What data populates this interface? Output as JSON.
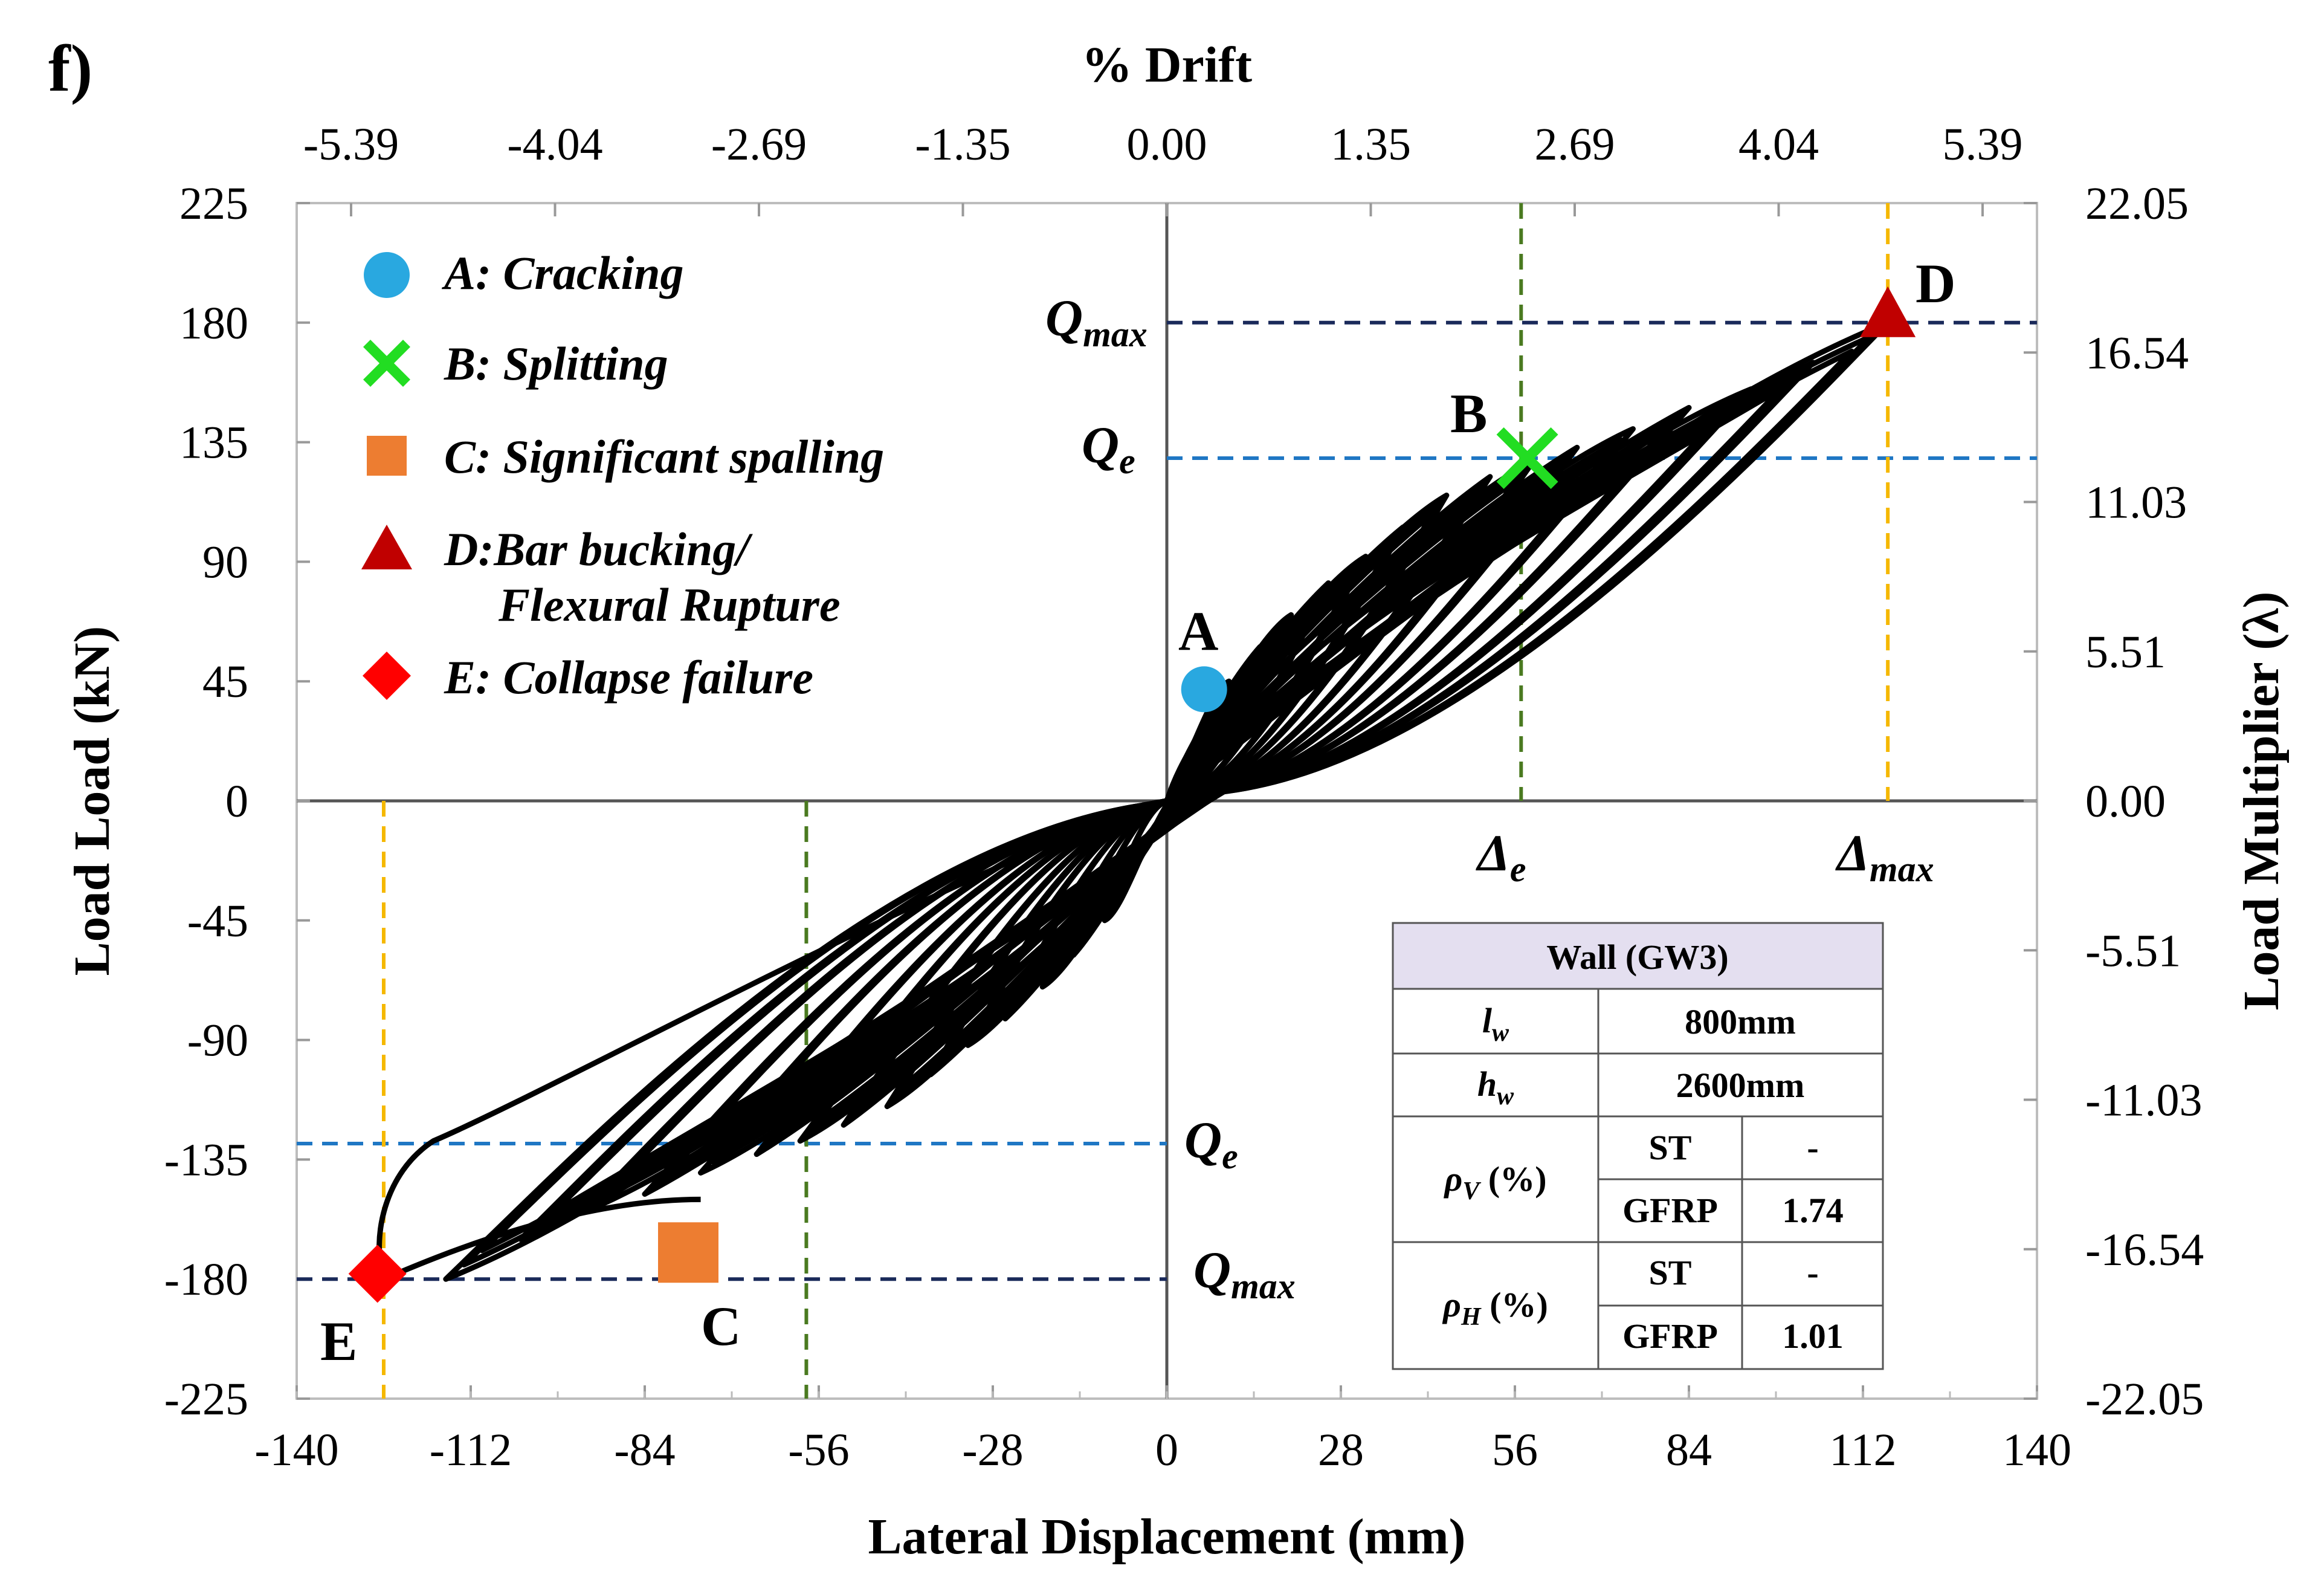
{
  "panel_label": "f)",
  "colors": {
    "hysteresis": "#000000",
    "qe_line": "#1f77c4",
    "qmax_line": "#1a2a5a",
    "delta_e_line": "#4a7a20",
    "delta_max_line": "#f5b800",
    "cracking": "#29a8e0",
    "splitting": "#22dd22",
    "spalling": "#ed7d31",
    "bucking": "#c00000",
    "collapse": "#ff0000",
    "table_header": "#e4dff0"
  },
  "chart_data": {
    "type": "line",
    "title": "",
    "xlabel": "Lateral Displacement (mm)",
    "ylabel": "Load Load (kN)",
    "x2label": "% Drift",
    "y2label": "Load Multiplier  (λ)",
    "xlim": [
      -140,
      140
    ],
    "ylim": [
      -225,
      225
    ],
    "x_ticks": [
      "-140",
      "-112",
      "-84",
      "-56",
      "-28",
      "0",
      "28",
      "56",
      "84",
      "112",
      "140"
    ],
    "y_ticks": [
      "225",
      "180",
      "135",
      "90",
      "45",
      "0",
      "-45",
      "-90",
      "-135",
      "-180",
      "-225"
    ],
    "x2_ticks": [
      "-5.39",
      "-4.04",
      "-2.69",
      "-1.35",
      "0.00",
      "1.35",
      "2.69",
      "4.04",
      "5.39"
    ],
    "y2_ticks": [
      "22.05",
      "16.54",
      "11.03",
      "5.51",
      "0.00",
      "-5.51",
      "-11.03",
      "-16.54",
      "-22.05"
    ],
    "hysteresis_amplitudes": [
      {
        "disp": 10,
        "load": 45
      },
      {
        "disp": 15,
        "load": 58
      },
      {
        "disp": 20,
        "load": 70
      },
      {
        "disp": 26,
        "load": 82
      },
      {
        "disp": 32,
        "load": 92
      },
      {
        "disp": 38,
        "load": 103
      },
      {
        "disp": 45,
        "load": 115
      },
      {
        "disp": 52,
        "load": 122
      },
      {
        "disp": 59,
        "load": 128
      },
      {
        "disp": 66,
        "load": 133
      },
      {
        "disp": 75,
        "load": 140
      },
      {
        "disp": 84,
        "load": 148
      },
      {
        "disp": 94,
        "load": 155
      },
      {
        "disp": 104,
        "load": 165
      },
      {
        "disp": 116,
        "load": 180
      }
    ],
    "collapse_branch": {
      "disp": -126,
      "load": -180
    },
    "reference_lines": {
      "Qmax": 180,
      "Qe": 129,
      "delta_e": 57,
      "delta_max": 116,
      "delta_e_neg": -58,
      "delta_max_neg": -126
    },
    "reference_labels": {
      "qmax_left": "Q",
      "qmax_sub": "max",
      "qe_left": "Q",
      "qe_sub": "e",
      "delta_e": "Δ",
      "delta_e_sub": "e",
      "delta_max": "Δ",
      "delta_max_sub": "max"
    },
    "points": [
      {
        "label": "A",
        "name": "Cracking",
        "x": 6,
        "y": 42
      },
      {
        "label": "B",
        "name": "Splitting",
        "x": 58,
        "y": 129
      },
      {
        "label": "C",
        "name": "Significant spalling",
        "x": -77,
        "y": -170
      },
      {
        "label": "D",
        "name": "Bar bucking / Flexural Rupture",
        "x": 116,
        "y": 180
      },
      {
        "label": "E",
        "name": "Collapse failure",
        "x": -127,
        "y": -178
      }
    ],
    "legend": [
      "A: Cracking",
      "B: Splitting",
      "C: Significant spalling",
      "D:Bar bucking/",
      "Flexural Rupture",
      "E: Collapse failure"
    ],
    "legend_position": "top-left"
  },
  "table": {
    "title": "Wall (GW3)",
    "rows": [
      {
        "param": "l",
        "sub": "w",
        "value": "800mm"
      },
      {
        "param": "h",
        "sub": "w",
        "value": "2600mm"
      }
    ],
    "rho_v": {
      "param": "ρ",
      "sub": "V",
      "suffix": " (%)",
      "st_label": "ST",
      "st_value": "-",
      "gfrp_label": "GFRP",
      "gfrp_value": "1.74"
    },
    "rho_h": {
      "param": "ρ",
      "sub": "H",
      "suffix": " (%)",
      "st_label": "ST",
      "st_value": "-",
      "gfrp_label": "GFRP",
      "gfrp_value": "1.01"
    }
  }
}
